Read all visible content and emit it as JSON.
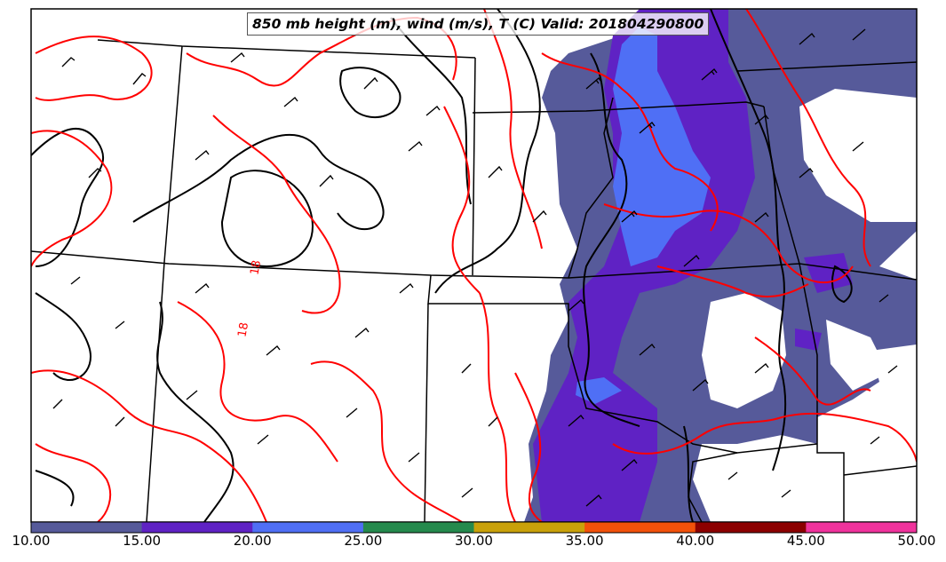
{
  "title": "850 mb height (m), wind (m/s), T (C) Valid: 201804290800",
  "colorbar": {
    "ticks": [
      "10.00",
      "15.00",
      "20.00",
      "25.00",
      "30.00",
      "35.00",
      "40.00",
      "45.00",
      "50.00"
    ],
    "colors": [
      "#565a9a",
      "#5f22c4",
      "#4f6ff5",
      "#258a4d",
      "#c9a10a",
      "#f2510a",
      "#8c0000",
      "#f0339c"
    ]
  },
  "contour_labels": [
    "18",
    "18"
  ],
  "colors": {
    "temperature_contour": "#ff0000",
    "height_contour": "#000000",
    "state_border": "#000000"
  },
  "legend_type": "horizontal colorbar, bottom"
}
